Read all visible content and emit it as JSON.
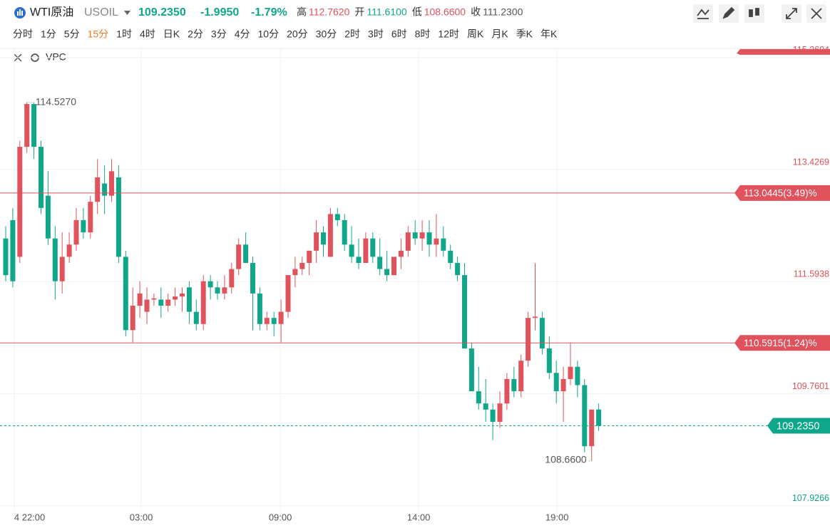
{
  "header": {
    "name": "WTI原油",
    "code": "USOIL",
    "price": "109.2350",
    "change": "-1.9950",
    "change_pct": "-1.79%",
    "stats": [
      {
        "label": "高",
        "value": "112.7620"
      },
      {
        "label": "开",
        "value": "111.6100"
      },
      {
        "label": "低",
        "value": "108.6600"
      },
      {
        "label": "收",
        "value": "111.2300"
      }
    ]
  },
  "periods": [
    "分时",
    "1分",
    "5分",
    "15分",
    "1时",
    "4时",
    "日K",
    "2分",
    "3分",
    "4分",
    "10分",
    "20分",
    "30分",
    "2时",
    "3时",
    "6时",
    "8时",
    "12时",
    "周K",
    "月K",
    "季K",
    "年K"
  ],
  "active_period": 3,
  "indicator": "VPC",
  "chart_data": {
    "type": "candlestick",
    "up_color": "#e0525c",
    "down_color": "#10a68a",
    "ylim": [
      107.83,
      115.41
    ],
    "yticks": [
      115.2604,
      113.4269,
      111.5938,
      109.7601,
      107.9266
    ],
    "xlim": [
      -0.8,
      117
    ],
    "xticks": [
      {
        "value": 1.2,
        "label": "4 22:00"
      },
      {
        "value": 19.2,
        "label": "03:00"
      },
      {
        "value": 38.9,
        "label": "09:00"
      },
      {
        "value": 58.5,
        "label": "14:00"
      },
      {
        "value": 78.1,
        "label": "19:00"
      }
    ],
    "price_lines": [
      {
        "value": 113.0445,
        "label": "113.0445(3.49)%"
      },
      {
        "value": 110.5915,
        "label": "110.5915(1.24)%"
      }
    ],
    "current": {
      "value": 109.235,
      "label": "109.2350"
    },
    "annotations": [
      {
        "index": 3,
        "value": 114.527,
        "label": "114.5270"
      },
      {
        "index": 83,
        "value": 108.66,
        "label": "108.6600"
      }
    ],
    "candles": [
      {
        "o": 112.3,
        "h": 112.5,
        "l": 111.6,
        "c": 111.7
      },
      {
        "o": 112.6,
        "h": 112.8,
        "l": 111.5,
        "c": 111.6
      },
      {
        "o": 112.0,
        "h": 113.9,
        "l": 111.9,
        "c": 113.8
      },
      {
        "o": 113.8,
        "h": 114.527,
        "l": 113.7,
        "c": 114.5
      },
      {
        "o": 114.5,
        "h": 114.52,
        "l": 113.6,
        "c": 113.8
      },
      {
        "o": 113.8,
        "h": 113.9,
        "l": 112.7,
        "c": 112.8
      },
      {
        "o": 113.0,
        "h": 113.4,
        "l": 112.2,
        "c": 112.3
      },
      {
        "o": 112.3,
        "h": 112.5,
        "l": 111.3,
        "c": 111.6
      },
      {
        "o": 111.6,
        "h": 112.4,
        "l": 111.4,
        "c": 112.0
      },
      {
        "o": 112.0,
        "h": 112.4,
        "l": 111.9,
        "c": 112.2
      },
      {
        "o": 112.2,
        "h": 112.8,
        "l": 112.1,
        "c": 112.6
      },
      {
        "o": 112.6,
        "h": 112.8,
        "l": 112.3,
        "c": 112.4
      },
      {
        "o": 112.4,
        "h": 113.0,
        "l": 112.3,
        "c": 112.9
      },
      {
        "o": 112.9,
        "h": 113.6,
        "l": 112.7,
        "c": 113.3
      },
      {
        "o": 113.2,
        "h": 113.5,
        "l": 112.7,
        "c": 113.0
      },
      {
        "o": 113.0,
        "h": 113.6,
        "l": 112.9,
        "c": 113.4
      },
      {
        "o": 113.3,
        "h": 113.5,
        "l": 111.9,
        "c": 112.0
      },
      {
        "o": 112.0,
        "h": 112.1,
        "l": 110.7,
        "c": 110.8
      },
      {
        "o": 110.8,
        "h": 111.5,
        "l": 110.6,
        "c": 111.2
      },
      {
        "o": 111.2,
        "h": 111.6,
        "l": 111.0,
        "c": 111.4
      },
      {
        "o": 111.1,
        "h": 111.5,
        "l": 110.9,
        "c": 111.3
      },
      {
        "o": 111.3,
        "h": 111.4,
        "l": 111.2,
        "c": 111.32
      },
      {
        "o": 111.3,
        "h": 111.5,
        "l": 111.0,
        "c": 111.2
      },
      {
        "o": 111.2,
        "h": 111.4,
        "l": 111.1,
        "c": 111.3
      },
      {
        "o": 111.3,
        "h": 111.5,
        "l": 111.2,
        "c": 111.35
      },
      {
        "o": 111.35,
        "h": 111.5,
        "l": 111.1,
        "c": 111.4
      },
      {
        "o": 111.5,
        "h": 111.6,
        "l": 110.9,
        "c": 111.1
      },
      {
        "o": 111.1,
        "h": 111.3,
        "l": 110.8,
        "c": 110.9
      },
      {
        "o": 110.9,
        "h": 111.7,
        "l": 110.8,
        "c": 111.6
      },
      {
        "o": 111.6,
        "h": 111.7,
        "l": 111.3,
        "c": 111.5
      },
      {
        "o": 111.5,
        "h": 111.6,
        "l": 111.3,
        "c": 111.4
      },
      {
        "o": 111.4,
        "h": 111.7,
        "l": 111.3,
        "c": 111.5
      },
      {
        "o": 111.5,
        "h": 111.9,
        "l": 111.4,
        "c": 111.8
      },
      {
        "o": 111.8,
        "h": 112.3,
        "l": 111.7,
        "c": 112.2
      },
      {
        "o": 112.2,
        "h": 112.4,
        "l": 111.9,
        "c": 111.9
      },
      {
        "o": 111.9,
        "h": 112.0,
        "l": 110.8,
        "c": 111.4
      },
      {
        "o": 111.4,
        "h": 111.5,
        "l": 110.8,
        "c": 110.9
      },
      {
        "o": 110.9,
        "h": 111.1,
        "l": 110.8,
        "c": 111.0
      },
      {
        "o": 111.0,
        "h": 111.1,
        "l": 110.7,
        "c": 110.9
      },
      {
        "o": 110.9,
        "h": 111.3,
        "l": 110.6,
        "c": 111.1
      },
      {
        "o": 111.1,
        "h": 111.7,
        "l": 111.0,
        "c": 111.7
      },
      {
        "o": 111.7,
        "h": 112.0,
        "l": 111.5,
        "c": 111.8
      },
      {
        "o": 111.8,
        "h": 112.0,
        "l": 111.7,
        "c": 111.9
      },
      {
        "o": 111.9,
        "h": 112.1,
        "l": 111.7,
        "c": 112.1
      },
      {
        "o": 112.1,
        "h": 112.6,
        "l": 111.9,
        "c": 112.4
      },
      {
        "o": 112.4,
        "h": 112.5,
        "l": 112.0,
        "c": 112.2
      },
      {
        "o": 112.0,
        "h": 112.8,
        "l": 112.0,
        "c": 112.7
      },
      {
        "o": 112.7,
        "h": 112.8,
        "l": 112.5,
        "c": 112.6
      },
      {
        "o": 112.6,
        "h": 112.7,
        "l": 112.1,
        "c": 112.2
      },
      {
        "o": 112.2,
        "h": 112.5,
        "l": 111.9,
        "c": 112.0
      },
      {
        "o": 112.0,
        "h": 112.3,
        "l": 111.8,
        "c": 111.9
      },
      {
        "o": 111.9,
        "h": 112.4,
        "l": 111.9,
        "c": 112.3
      },
      {
        "o": 112.3,
        "h": 112.4,
        "l": 111.9,
        "c": 112.0
      },
      {
        "o": 112.0,
        "h": 112.3,
        "l": 111.7,
        "c": 111.8
      },
      {
        "o": 111.8,
        "h": 112.1,
        "l": 111.6,
        "c": 111.7
      },
      {
        "o": 111.7,
        "h": 112.0,
        "l": 111.7,
        "c": 112.0
      },
      {
        "o": 112.0,
        "h": 112.3,
        "l": 111.8,
        "c": 112.1
      },
      {
        "o": 112.1,
        "h": 112.5,
        "l": 112.0,
        "c": 112.4
      },
      {
        "o": 112.4,
        "h": 112.6,
        "l": 112.2,
        "c": 112.3
      },
      {
        "o": 112.3,
        "h": 112.6,
        "l": 112.1,
        "c": 112.4
      },
      {
        "o": 112.4,
        "h": 112.6,
        "l": 112.0,
        "c": 112.2
      },
      {
        "o": 112.2,
        "h": 112.7,
        "l": 112.0,
        "c": 112.3
      },
      {
        "o": 112.3,
        "h": 112.5,
        "l": 112.0,
        "c": 112.1
      },
      {
        "o": 112.1,
        "h": 112.2,
        "l": 111.8,
        "c": 111.9
      },
      {
        "o": 111.9,
        "h": 112.0,
        "l": 111.6,
        "c": 111.7
      },
      {
        "o": 111.7,
        "h": 111.9,
        "l": 110.5,
        "c": 110.5
      },
      {
        "o": 110.5,
        "h": 110.6,
        "l": 109.8,
        "c": 109.8
      },
      {
        "o": 109.8,
        "h": 110.2,
        "l": 109.5,
        "c": 109.6
      },
      {
        "o": 109.6,
        "h": 110.0,
        "l": 109.3,
        "c": 109.5
      },
      {
        "o": 109.5,
        "h": 109.6,
        "l": 109.0,
        "c": 109.3
      },
      {
        "o": 109.3,
        "h": 109.8,
        "l": 109.2,
        "c": 109.6
      },
      {
        "o": 109.6,
        "h": 110.1,
        "l": 109.5,
        "c": 110.0
      },
      {
        "o": 110.0,
        "h": 110.2,
        "l": 109.7,
        "c": 109.8
      },
      {
        "o": 109.8,
        "h": 110.4,
        "l": 109.7,
        "c": 110.3
      },
      {
        "o": 110.3,
        "h": 111.1,
        "l": 110.2,
        "c": 111.0
      },
      {
        "o": 111.0,
        "h": 111.9,
        "l": 110.8,
        "c": 111.02
      },
      {
        "o": 111.0,
        "h": 111.1,
        "l": 110.4,
        "c": 110.5
      },
      {
        "o": 110.5,
        "h": 110.7,
        "l": 110.0,
        "c": 110.1
      },
      {
        "o": 110.1,
        "h": 110.3,
        "l": 109.6,
        "c": 109.8
      },
      {
        "o": 109.8,
        "h": 110.2,
        "l": 109.3,
        "c": 110.0
      },
      {
        "o": 110.0,
        "h": 110.6,
        "l": 109.9,
        "c": 110.2
      },
      {
        "o": 110.2,
        "h": 110.3,
        "l": 109.7,
        "c": 109.9
      },
      {
        "o": 109.9,
        "h": 110.0,
        "l": 108.8,
        "c": 108.9
      },
      {
        "o": 108.9,
        "h": 109.5,
        "l": 108.66,
        "c": 109.5
      },
      {
        "o": 109.5,
        "h": 109.6,
        "l": 109.15,
        "c": 109.235
      }
    ]
  }
}
